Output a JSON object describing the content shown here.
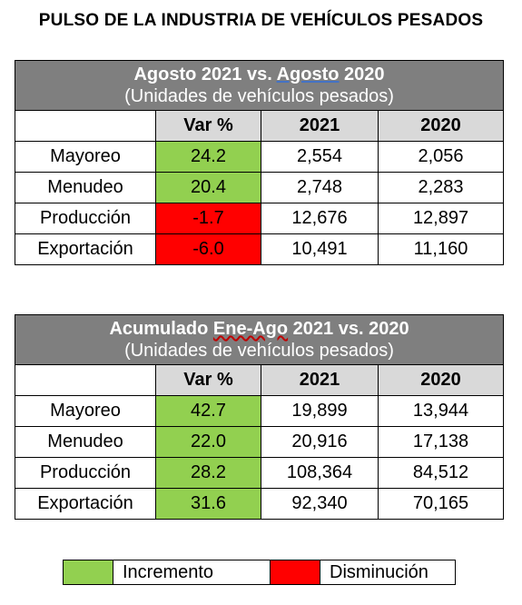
{
  "title": "PULSO DE LA INDUSTRIA DE VEHÍCULOS PESADOS",
  "colors": {
    "increase": "#92d050",
    "decrease": "#ff0000",
    "header": "#7f7f7f",
    "column_header": "#d9d9d9"
  },
  "table1": {
    "title_parts": [
      "Agosto 2021 vs. ",
      "Agosto",
      " 2020"
    ],
    "subtitle": "(Unidades de vehículos pesados)",
    "columns": [
      "Var %",
      "2021",
      "2020"
    ],
    "rows": [
      {
        "label": "Mayoreo",
        "var": "24.2",
        "y2021": "2,554",
        "y2020": "2,056",
        "trend": "up"
      },
      {
        "label": "Menudeo",
        "var": "20.4",
        "y2021": "2,748",
        "y2020": "2,283",
        "trend": "up"
      },
      {
        "label": "Producción",
        "var": "-1.7",
        "y2021": "12,676",
        "y2020": "12,897",
        "trend": "down"
      },
      {
        "label": "Exportación",
        "var": "-6.0",
        "y2021": "10,491",
        "y2020": "11,160",
        "trend": "down"
      }
    ]
  },
  "table2": {
    "title_parts": [
      "Acumulado ",
      "Ene-Ago",
      " 2021 vs. 2020"
    ],
    "subtitle": "(Unidades de vehículos pesados)",
    "columns": [
      "Var %",
      "2021",
      "2020"
    ],
    "rows": [
      {
        "label": "Mayoreo",
        "var": "42.7",
        "y2021": "19,899",
        "y2020": "13,944",
        "trend": "up"
      },
      {
        "label": "Menudeo",
        "var": "22.0",
        "y2021": "20,916",
        "y2020": "17,138",
        "trend": "up"
      },
      {
        "label": "Producción",
        "var": "28.2",
        "y2021": "108,364",
        "y2020": "84,512",
        "trend": "up"
      },
      {
        "label": "Exportación",
        "var": "31.6",
        "y2021": "92,340",
        "y2020": "70,165",
        "trend": "up"
      }
    ]
  },
  "legend": {
    "increase_label": "Incremento",
    "decrease_label": "Disminución"
  }
}
